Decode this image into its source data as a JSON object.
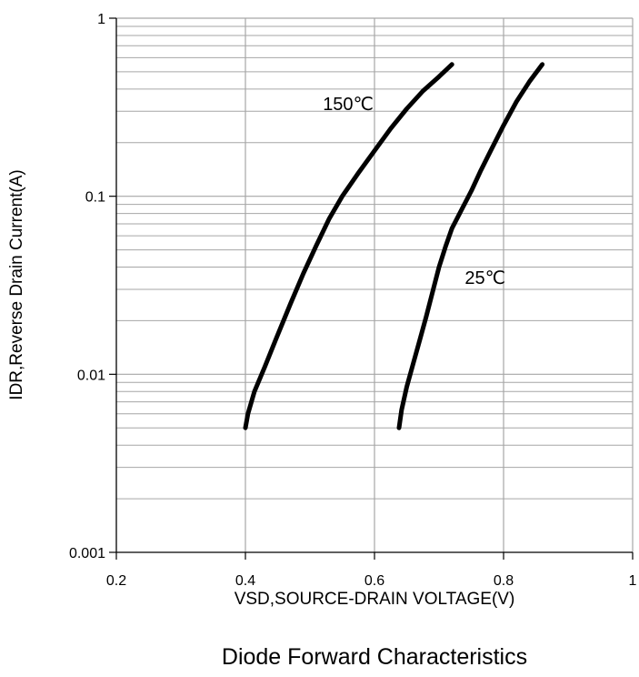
{
  "chart_data": {
    "type": "line",
    "title": "Diode Forward Characteristics",
    "xlabel": "VSD,SOURCE-DRAIN VOLTAGE(V)",
    "ylabel": "IDR,Reverse Drain Current(A)",
    "xlim": [
      0.2,
      1
    ],
    "ylim": [
      0.001,
      1
    ],
    "y_scale": "log",
    "grid": true,
    "x_ticks": [
      0.2,
      0.4,
      0.6,
      0.8,
      1
    ],
    "x_tick_labels": [
      "0.2",
      "0.4",
      "0.6",
      "0.8",
      "1"
    ],
    "y_ticks": [
      0.001,
      0.01,
      0.1,
      1
    ],
    "y_tick_labels": [
      "0.001",
      "0.01",
      "0.1",
      "1"
    ],
    "series": [
      {
        "name": "150℃",
        "label_at": [
          0.52,
          0.33
        ],
        "x": [
          0.4,
          0.404,
          0.414,
          0.43,
          0.448,
          0.47,
          0.49,
          0.51,
          0.53,
          0.55,
          0.575,
          0.6,
          0.625,
          0.65,
          0.675,
          0.7,
          0.72
        ],
        "y": [
          0.005,
          0.006,
          0.008,
          0.011,
          0.016,
          0.025,
          0.037,
          0.053,
          0.075,
          0.1,
          0.135,
          0.18,
          0.24,
          0.31,
          0.39,
          0.47,
          0.55
        ]
      },
      {
        "name": "25℃",
        "label_at": [
          0.74,
          0.035
        ],
        "x": [
          0.638,
          0.642,
          0.65,
          0.66,
          0.67,
          0.68,
          0.69,
          0.7,
          0.71,
          0.72,
          0.735,
          0.75,
          0.765,
          0.78,
          0.8,
          0.82,
          0.84,
          0.86
        ],
        "y": [
          0.005,
          0.0063,
          0.0085,
          0.0115,
          0.0155,
          0.021,
          0.029,
          0.04,
          0.052,
          0.066,
          0.084,
          0.107,
          0.14,
          0.18,
          0.25,
          0.34,
          0.44,
          0.55
        ]
      }
    ]
  },
  "colors": {
    "line": "#000000",
    "grid": "#a6a6a6",
    "axis": "#000000"
  }
}
